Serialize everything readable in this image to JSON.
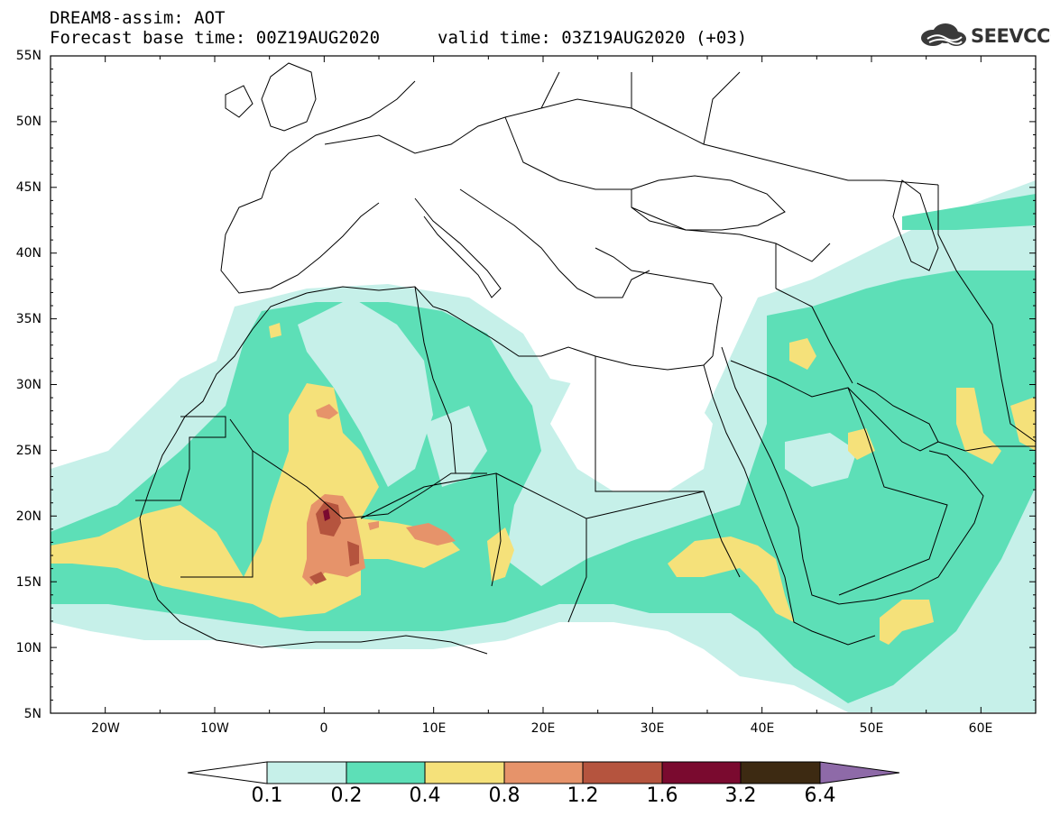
{
  "header": {
    "title_line1": "DREAM8-assim: AOT",
    "base_time": "Forecast base time: 00Z19AUG2020",
    "valid_time": "valid time: 03Z19AUG2020 (+03)"
  },
  "logo": {
    "text": "SEEVCCC",
    "icon": "cloud-logo-icon"
  },
  "map": {
    "lon_range": [
      -25,
      65
    ],
    "lat_range": [
      5,
      55
    ],
    "lat_ticks": [
      "55N",
      "50N",
      "45N",
      "40N",
      "35N",
      "30N",
      "25N",
      "20N",
      "15N",
      "10N",
      "5N"
    ],
    "lon_ticks": [
      "20W",
      "10W",
      "0",
      "10E",
      "20E",
      "30E",
      "40E",
      "50E",
      "60E"
    ]
  },
  "colorbar": {
    "labels": [
      "0.1",
      "0.2",
      "0.4",
      "0.8",
      "1.2",
      "1.6",
      "3.2",
      "6.4"
    ],
    "colors": {
      "below": "#ffffff",
      "c1": "#c6f0e9",
      "c2": "#5ddfb7",
      "c3": "#f5e17a",
      "c4": "#e6936a",
      "c5": "#b5543e",
      "c6": "#7a0a2f",
      "c7": "#3d2a12",
      "above": "#8e6aa8"
    }
  }
}
